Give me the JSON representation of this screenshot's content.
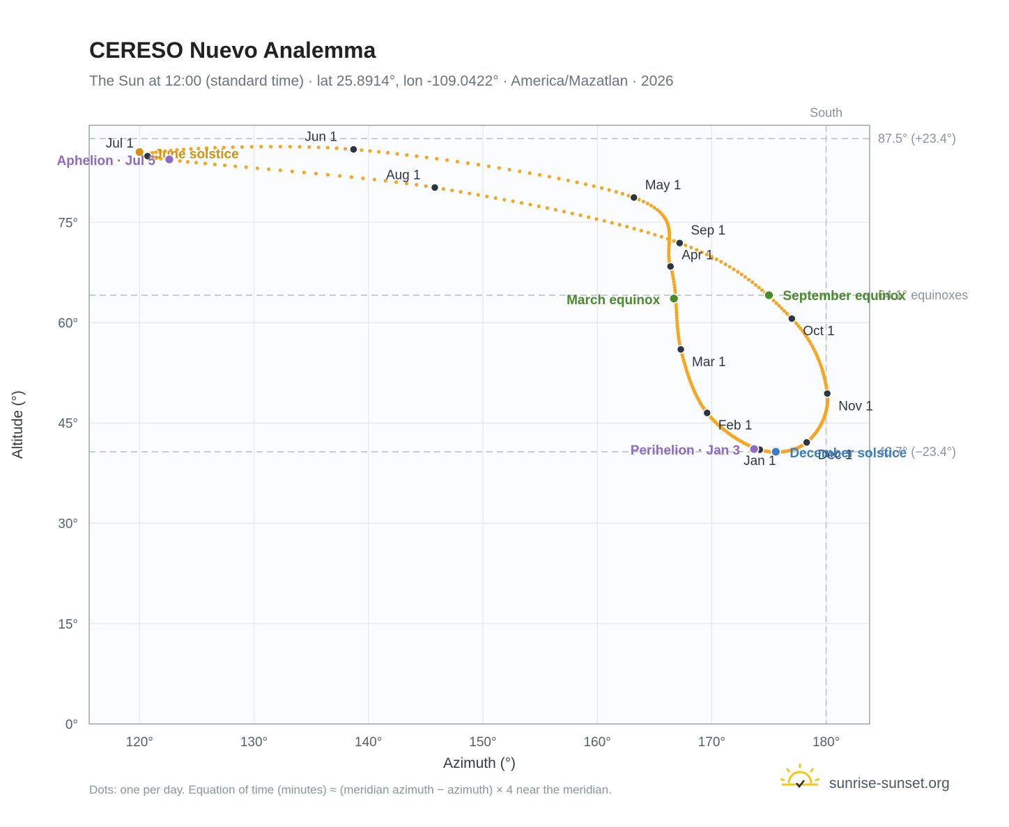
{
  "header": {
    "title": "CERESO Nuevo Analemma",
    "subtitle": "The Sun at 12:00 (standard time) · lat 25.8914°, lon -109.0422° · America/Mazatlan · 2026"
  },
  "footer": {
    "note": "Dots: one per day. Equation of time (minutes) ≈ (meridian azimuth − azimuth) × 4 near the meridian.",
    "brand": "sunrise-sunset.org"
  },
  "colors": {
    "path": "#f5a623",
    "month_dot": "#2d3640",
    "solstice_june": "#d4920c",
    "solstice_december": "#3a7dc0",
    "equinox": "#4a8a2a",
    "apsis": "#8e6bbf",
    "grid": "#e3e7ec",
    "frame": "#9aa4b0",
    "plot_bg": "#fafcfe",
    "ref_line": "#b8c2cc"
  },
  "chart_data": {
    "type": "scatter",
    "title": "CERESO Nuevo Analemma",
    "subtitle": "The Sun at 12:00 (standard time) · lat 25.8914°, lon -109.0422° · America/Mazatlan · 2026",
    "xlabel": "Azimuth (°)",
    "ylabel": "Altitude (°)",
    "xlim": [
      115.6,
      183.8
    ],
    "ylim": [
      0,
      89.5
    ],
    "x_ticks": [
      120,
      130,
      140,
      150,
      160,
      170,
      180
    ],
    "x_tick_labels": [
      "120°",
      "130°",
      "140°",
      "150°",
      "160°",
      "170°",
      "180°"
    ],
    "y_ticks": [
      0,
      15,
      30,
      45,
      60,
      75
    ],
    "y_tick_labels": [
      "0°",
      "15°",
      "30°",
      "45°",
      "60°",
      "75°"
    ],
    "grid": true,
    "reference_lines": {
      "horizontal": [
        {
          "y": 87.5,
          "label": "87.5° (+23.4°)"
        },
        {
          "y": 64.1,
          "label": "64.1° equinoxes"
        },
        {
          "y": 40.7,
          "label": "40.7° (−23.4°)"
        }
      ],
      "vertical": [
        {
          "x": 180,
          "label": "South"
        }
      ]
    },
    "month_markers": [
      {
        "label": "Jan 1",
        "x": 174.2,
        "y": 41.0
      },
      {
        "label": "Feb 1",
        "x": 169.6,
        "y": 46.5
      },
      {
        "label": "Mar 1",
        "x": 167.3,
        "y": 56.0
      },
      {
        "label": "Apr 1",
        "x": 166.4,
        "y": 68.4
      },
      {
        "label": "May 1",
        "x": 163.2,
        "y": 78.7
      },
      {
        "label": "Jun 1",
        "x": 138.7,
        "y": 85.9
      },
      {
        "label": "Jul 1",
        "x": 120.7,
        "y": 84.9
      },
      {
        "label": "Aug 1",
        "x": 145.8,
        "y": 80.2
      },
      {
        "label": "Sep 1",
        "x": 167.2,
        "y": 71.9
      },
      {
        "label": "Oct 1",
        "x": 177.0,
        "y": 60.6
      },
      {
        "label": "Nov 1",
        "x": 180.1,
        "y": 49.4
      },
      {
        "label": "Dec 1",
        "x": 178.3,
        "y": 42.1
      }
    ],
    "events": [
      {
        "label": "June solstice",
        "x": 120.0,
        "y": 85.5,
        "kind": "solstice_june"
      },
      {
        "label": "Aphelion · Jul 5",
        "x": 122.6,
        "y": 84.4,
        "kind": "apsis"
      },
      {
        "label": "March equinox",
        "x": 166.7,
        "y": 63.6,
        "kind": "equinox"
      },
      {
        "label": "September equinox",
        "x": 175.0,
        "y": 64.1,
        "kind": "equinox"
      },
      {
        "label": "Perihelion · Jan 3",
        "x": 173.7,
        "y": 41.1,
        "kind": "apsis"
      },
      {
        "label": "December solstice",
        "x": 175.6,
        "y": 40.7,
        "kind": "solstice_december"
      }
    ]
  }
}
